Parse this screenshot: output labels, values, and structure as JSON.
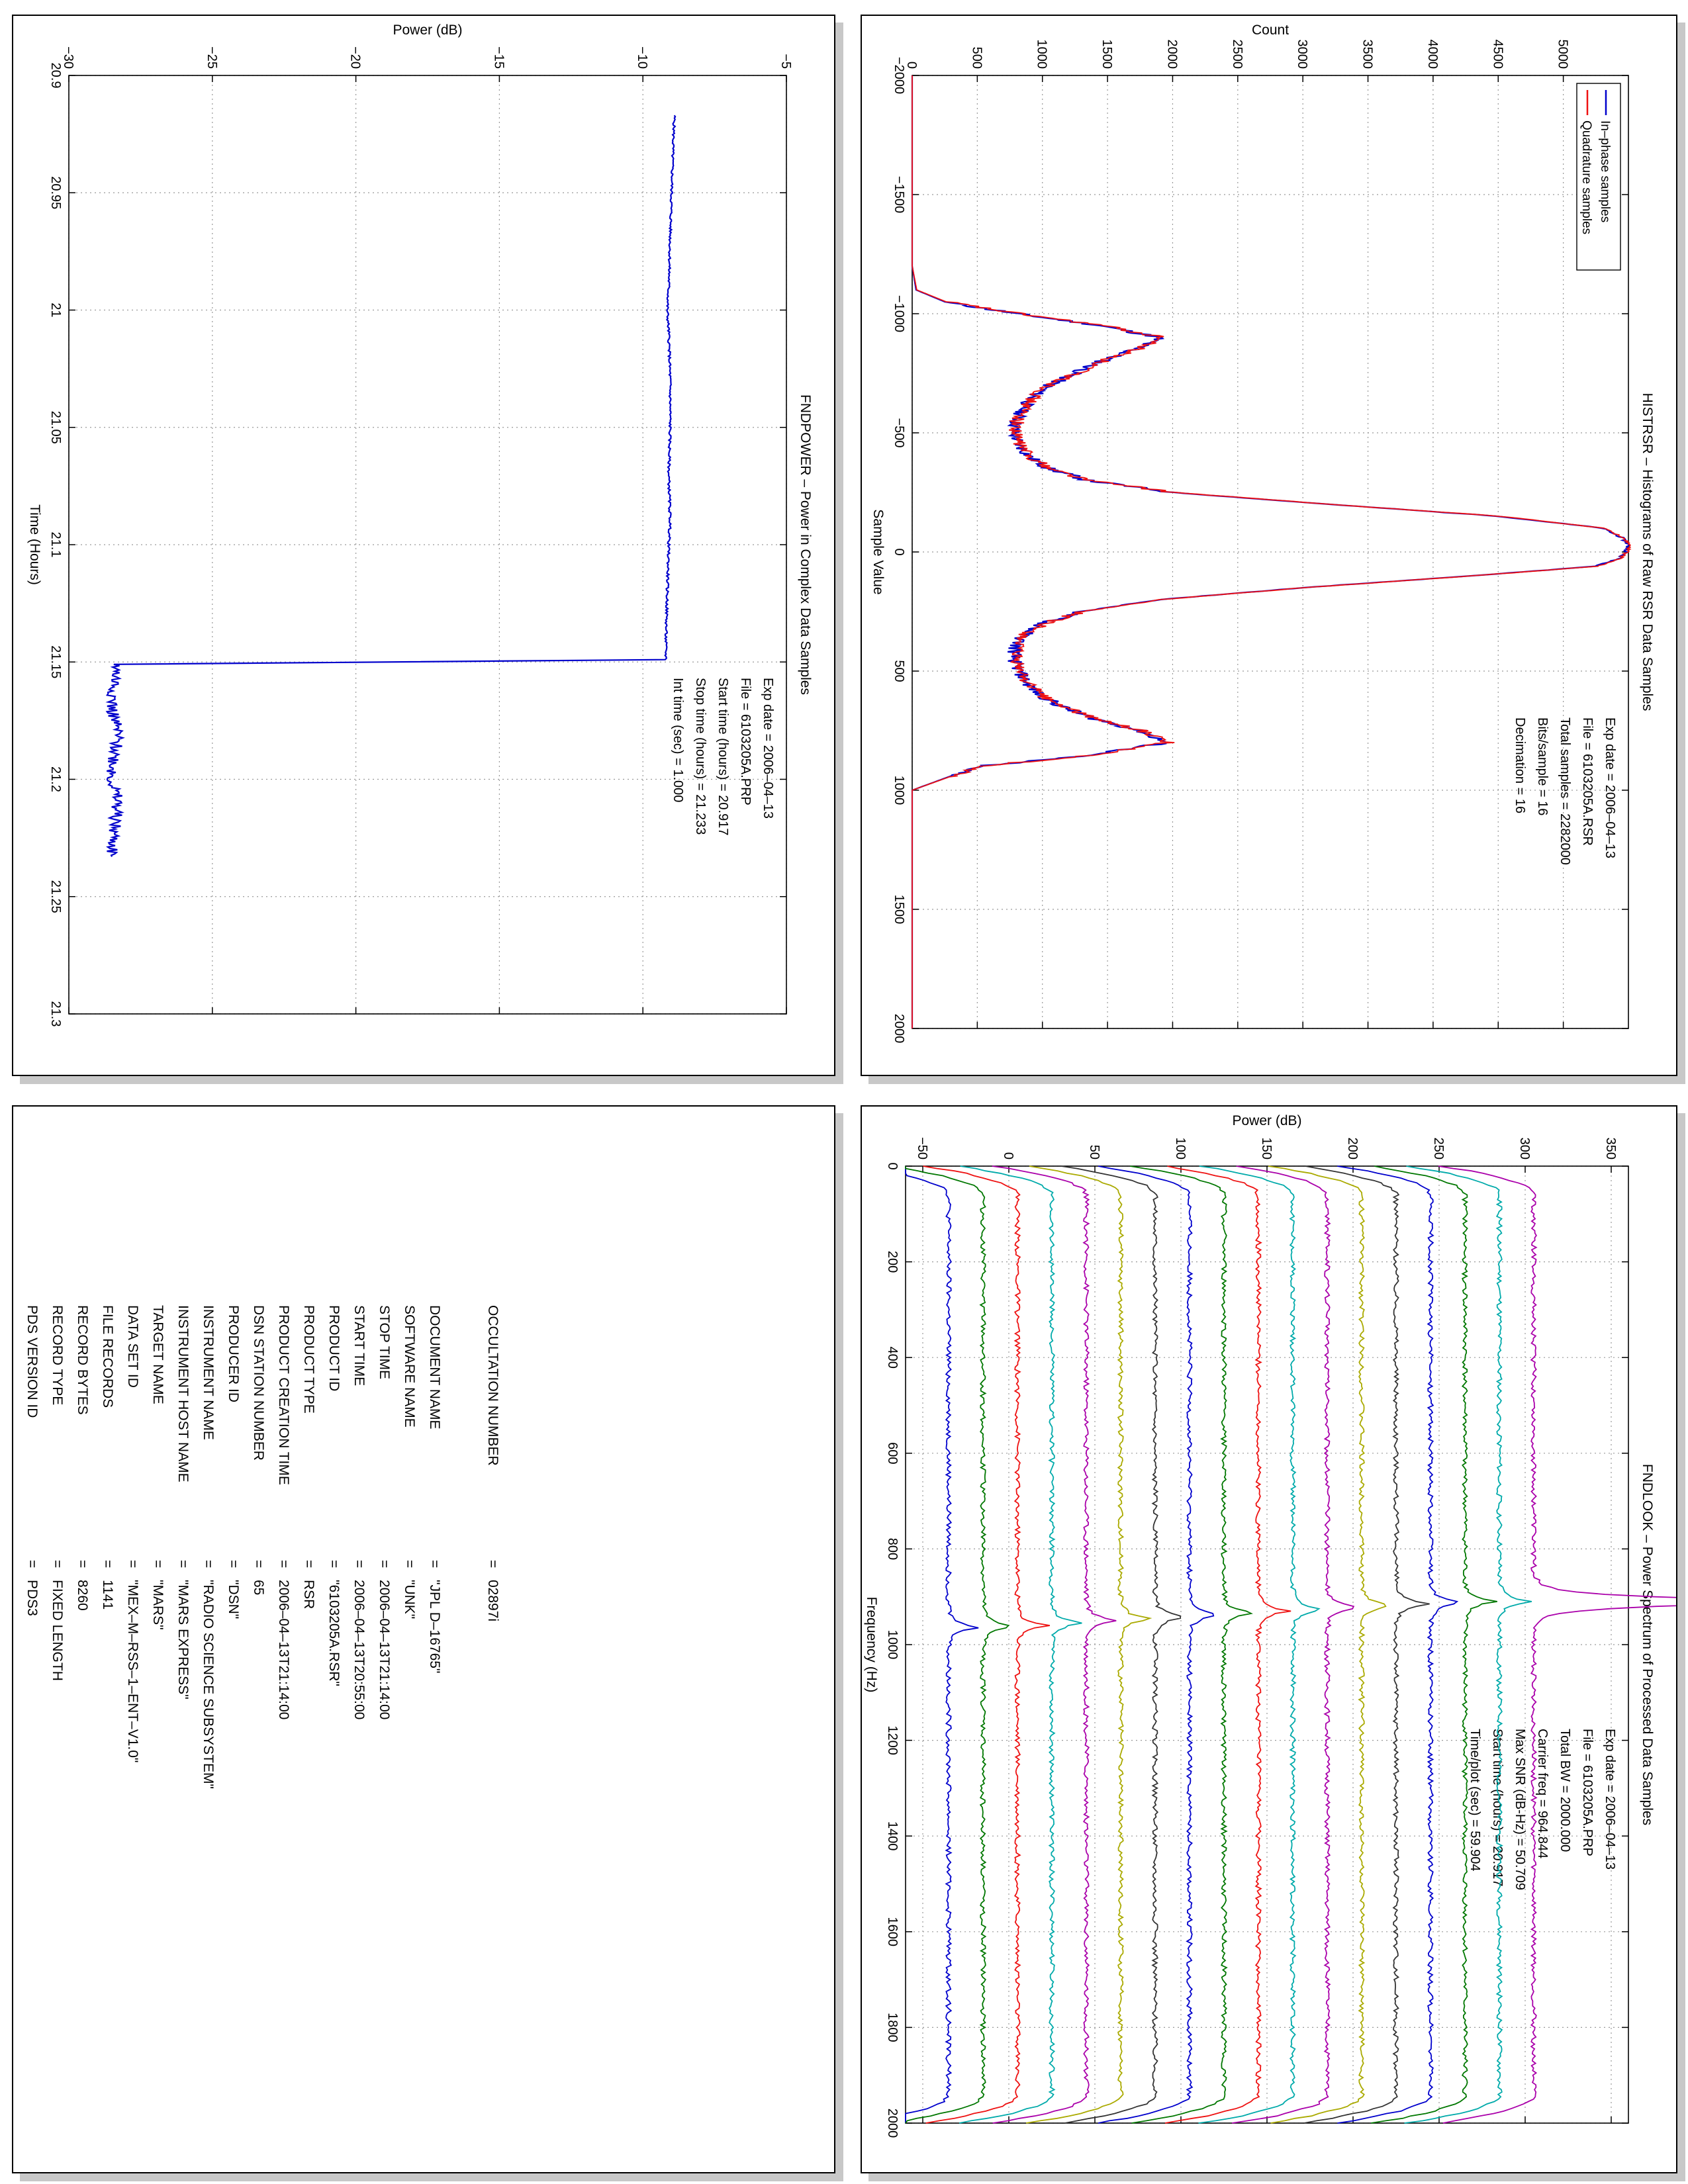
{
  "chart_data": [
    {
      "id": "histogram",
      "type": "line",
      "title": "HISTRSR – Histograms of Raw RSR Data Samples",
      "xlabel": "Sample Value",
      "ylabel": "Count",
      "xlim": [
        -2000,
        2000
      ],
      "ylim": [
        0,
        5500
      ],
      "xticks": [
        -2000,
        -1500,
        -1000,
        -500,
        0,
        500,
        1000,
        1500,
        2000
      ],
      "yticks": [
        0,
        500,
        1000,
        1500,
        2000,
        2500,
        3000,
        3500,
        4000,
        4500,
        5000
      ],
      "grid": true,
      "legend_position": "top-left",
      "info": [
        "Exp date = 2006–04–13",
        "File = 6103205A.RSR",
        "Total samples =   2282000",
        "Bits/sample   =        16",
        "Decimation   =        16"
      ],
      "x": [
        -2000,
        -1200,
        -1100,
        -1050,
        -1000,
        -950,
        -900,
        -850,
        -800,
        -750,
        -700,
        -650,
        -600,
        -550,
        -500,
        -450,
        -400,
        -350,
        -300,
        -250,
        -200,
        -150,
        -100,
        -60,
        -30,
        0,
        30,
        60,
        100,
        150,
        200,
        250,
        300,
        350,
        400,
        450,
        500,
        550,
        600,
        650,
        700,
        750,
        800,
        850,
        900,
        1000,
        2000
      ],
      "series": [
        {
          "name": "In–phase samples",
          "color": "#0000cc",
          "values": [
            0,
            0,
            30,
            250,
            800,
            1450,
            1900,
            1700,
            1450,
            1250,
            1050,
            920,
            850,
            800,
            780,
            820,
            900,
            1050,
            1350,
            2000,
            3200,
            4500,
            5300,
            5450,
            5500,
            5480,
            5420,
            5250,
            4300,
            3000,
            1900,
            1300,
            1000,
            850,
            790,
            780,
            820,
            880,
            980,
            1150,
            1400,
            1750,
            1950,
            1400,
            500,
            0,
            0
          ]
        },
        {
          "name": "Quadrature samples",
          "color": "#ee1111",
          "values": [
            0,
            0,
            35,
            260,
            820,
            1470,
            1920,
            1720,
            1460,
            1260,
            1060,
            930,
            860,
            810,
            790,
            830,
            910,
            1060,
            1360,
            2010,
            3210,
            4510,
            5310,
            5460,
            5510,
            5490,
            5430,
            5260,
            4310,
            3010,
            1910,
            1310,
            1010,
            860,
            800,
            790,
            830,
            890,
            990,
            1160,
            1410,
            1760,
            1960,
            1410,
            510,
            0,
            0
          ]
        }
      ]
    },
    {
      "id": "power",
      "type": "line",
      "title": "FNDPOWER – Power in Complex Data Samples",
      "xlabel": "Time (Hours)",
      "ylabel": "Power (dB)",
      "xlim": [
        20.9,
        21.3
      ],
      "ylim": [
        -30,
        -5
      ],
      "xticks": [
        20.9,
        20.95,
        21,
        21.05,
        21.1,
        21.15,
        21.2,
        21.25,
        21.3
      ],
      "xtick_labels": [
        "20.9",
        "20.95",
        "21",
        "21.05",
        "21.1",
        "21.15",
        "21.2",
        "21.25",
        "21.3"
      ],
      "yticks": [
        -30,
        -25,
        -20,
        -15,
        -10,
        -5
      ],
      "grid": true,
      "info": [
        "Exp date = 2006–04–13",
        "File = 6103205A.PRP",
        "Start time (hours) = 20.917",
        "Stop time (hours) = 21.233",
        "Int time (sec) =      1.000"
      ],
      "series": [
        {
          "color": "#0000cc",
          "x": [
            20.917,
            20.93,
            20.95,
            20.97,
            20.99,
            21.0,
            21.01,
            21.03,
            21.05,
            21.07,
            21.09,
            21.1,
            21.12,
            21.14,
            21.149,
            21.151,
            21.16,
            21.17,
            21.18,
            21.19,
            21.2,
            21.21,
            21.22,
            21.233
          ],
          "y": [
            -8.9,
            -8.95,
            -9.0,
            -9.05,
            -9.1,
            -9.15,
            -9.1,
            -9.05,
            -9.05,
            -9.1,
            -9.05,
            -9.1,
            -9.15,
            -9.2,
            -9.2,
            -28.3,
            -28.4,
            -28.5,
            -28.3,
            -28.4,
            -28.5,
            -28.3,
            -28.4,
            -28.5
          ]
        }
      ]
    },
    {
      "id": "spectrum",
      "type": "line",
      "title": "FNDLOOK – Power Spectrum of Processed Data Samples",
      "xlabel": "Frequency (Hz)",
      "ylabel": "Power (dB)",
      "xlim": [
        0,
        2000
      ],
      "ylim": [
        -60,
        360
      ],
      "xticks": [
        0,
        200,
        400,
        600,
        800,
        1000,
        1200,
        1400,
        1600,
        1800,
        2000
      ],
      "yticks": [
        -50,
        0,
        50,
        100,
        150,
        200,
        250,
        300,
        350
      ],
      "grid": true,
      "info": [
        "Exp date = 2006–04–13",
        "File = 6103205A.PRP",
        "Total BW =    2000.000",
        "Carrier freq =    964.844",
        "Max SNR (dB-Hz) =    50.709",
        "Start time (hours) =    20.917",
        "Time/plot (sec) =    59.904"
      ],
      "baseline_db": [
        -35,
        -15,
        5,
        25,
        45,
        65,
        85,
        105,
        125,
        145,
        165,
        185,
        205,
        225,
        245,
        265,
        285,
        305
      ],
      "carrier_hz": [
        964,
        962,
        960,
        955,
        950,
        946,
        942,
        938,
        934,
        930,
        926,
        922,
        918,
        915,
        912,
        910,
        910,
        910
      ],
      "colors": [
        "#0000cc",
        "#007700",
        "#ee1111",
        "#00aaaa",
        "#aa00aa",
        "#aaaa00",
        "#333333",
        "#0000cc",
        "#007700",
        "#ee1111",
        "#00aaaa",
        "#aa00aa",
        "#aaaa00",
        "#333333",
        "#0000cc",
        "#007700",
        "#00aaaa",
        "#aa00aa"
      ]
    }
  ],
  "label": {
    "rows": [
      {
        "key": "PDS VERSION ID",
        "value": "PDS3"
      },
      {
        "key": "RECORD TYPE",
        "value": "FIXED LENGTH"
      },
      {
        "key": "RECORD BYTES",
        "value": "8260"
      },
      {
        "key": "FILE RECORDS",
        "value": "1141"
      },
      {
        "key": "DATA SET ID",
        "value": "\"MEX–M–RSS–1–ENT–V1.0\""
      },
      {
        "key": "TARGET NAME",
        "value": "\"MARS\""
      },
      {
        "key": "INSTRUMENT HOST NAME",
        "value": "\"MARS EXPRESS\""
      },
      {
        "key": "INSTRUMENT NAME",
        "value": "\"RADIO SCIENCE SUBSYSTEM\""
      },
      {
        "key": "PRODUCER ID",
        "value": "\"DSN\""
      },
      {
        "key": "DSN STATION NUMBER",
        "value": "65"
      },
      {
        "key": "PRODUCT CREATION TIME",
        "value": "2006–04–13T21:14:00"
      },
      {
        "key": "PRODUCT TYPE",
        "value": "RSR"
      },
      {
        "key": "PRODUCT ID",
        "value": "\"6103205A.RSR\""
      },
      {
        "key": "START TIME",
        "value": "2006–04–13T20:55:00"
      },
      {
        "key": "STOP TIME",
        "value": "2006–04–13T21:14:00"
      },
      {
        "key": "SOFTWARE NAME",
        "value": "\"UNK\""
      },
      {
        "key": "DOCUMENT NAME",
        "value": "\"JPL D–16765\""
      },
      {
        "key": "OCCULTATION NUMBER",
        "value": "02897i"
      }
    ],
    "equals": "="
  }
}
